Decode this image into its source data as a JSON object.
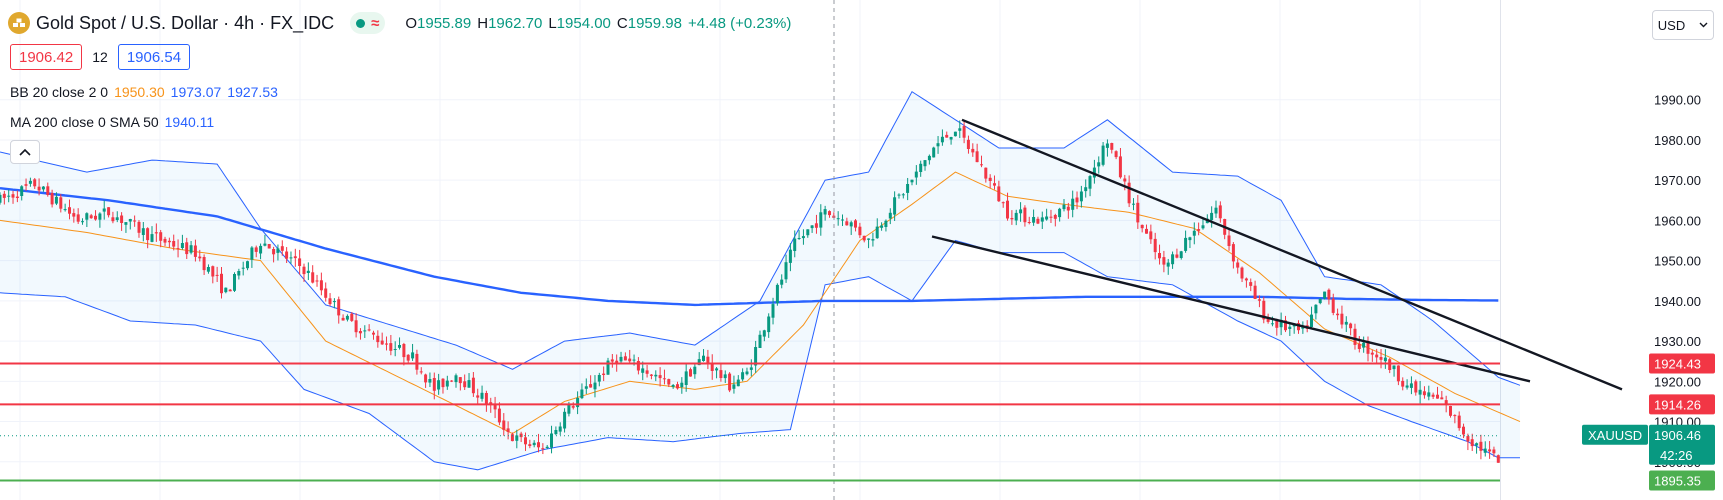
{
  "header": {
    "title": "Gold Spot / U.S. Dollar · 4h · FX_IDC",
    "ohlc": {
      "o_label": "O",
      "o": "1955.89",
      "h_label": "H",
      "h": "1962.70",
      "l_label": "L",
      "l": "1954.00",
      "c_label": "C",
      "c": "1959.98",
      "change": "+4.48 (+0.23%)"
    },
    "status_color": "#089981"
  },
  "trade": {
    "sell": "1906.42",
    "spread": "12",
    "buy": "1906.54"
  },
  "indicators": {
    "bb": {
      "label": "BB 20 close 2 0",
      "basis": "1950.30",
      "upper": "1973.07",
      "lower": "1927.53",
      "basis_color": "#f7931a",
      "band_color": "#2962ff"
    },
    "ma": {
      "label": "MA 200 close 0 SMA 50",
      "value": "1940.11",
      "color": "#2962ff"
    }
  },
  "currency": {
    "label": "USD"
  },
  "chart_data": {
    "type": "candlestick",
    "symbol": "XAUUSD",
    "interval": "4h",
    "y_axis": {
      "ticks": [
        1900,
        1910,
        1920,
        1930,
        1940,
        1950,
        1960,
        1970,
        1980,
        1990
      ],
      "labels": [
        "1900.00",
        "1910.00",
        "1920.00",
        "1930.00",
        "1940.00",
        "1950.00",
        "1960.00",
        "1970.00",
        "1980.00",
        "1990.00"
      ],
      "range": [
        1890.5,
        2001.8
      ]
    },
    "candle_count": 300,
    "close_path": [
      [
        0,
        1965
      ],
      [
        8,
        1969
      ],
      [
        18,
        1960
      ],
      [
        25,
        1962
      ],
      [
        35,
        1956
      ],
      [
        45,
        1952
      ],
      [
        52,
        1942
      ],
      [
        60,
        1955
      ],
      [
        70,
        1948
      ],
      [
        80,
        1935
      ],
      [
        88,
        1930
      ],
      [
        95,
        1926
      ],
      [
        100,
        1918
      ],
      [
        105,
        1922
      ],
      [
        112,
        1915
      ],
      [
        118,
        1906
      ],
      [
        125,
        1903
      ],
      [
        130,
        1912
      ],
      [
        135,
        1918
      ],
      [
        142,
        1926
      ],
      [
        150,
        1922
      ],
      [
        155,
        1918
      ],
      [
        162,
        1926
      ],
      [
        168,
        1919
      ],
      [
        172,
        1922
      ],
      [
        178,
        1940
      ],
      [
        183,
        1954
      ],
      [
        190,
        1962
      ],
      [
        195,
        1960
      ],
      [
        200,
        1955
      ],
      [
        205,
        1963
      ],
      [
        210,
        1970
      ],
      [
        215,
        1978
      ],
      [
        220,
        1983
      ],
      [
        225,
        1975
      ],
      [
        232,
        1962
      ],
      [
        240,
        1960
      ],
      [
        248,
        1965
      ],
      [
        255,
        1980
      ],
      [
        262,
        1960
      ],
      [
        268,
        1948
      ],
      [
        273,
        1955
      ],
      [
        280,
        1963
      ],
      [
        285,
        1948
      ],
      [
        292,
        1935
      ],
      [
        300,
        1932
      ],
      [
        305,
        1942
      ],
      [
        312,
        1930
      ],
      [
        318,
        1926
      ],
      [
        325,
        1918
      ],
      [
        332,
        1915
      ],
      [
        338,
        1906
      ],
      [
        345,
        1900
      ],
      [
        350,
        1904
      ]
    ],
    "bb_upper_path": [
      [
        0,
        1977
      ],
      [
        20,
        1972
      ],
      [
        35,
        1975
      ],
      [
        50,
        1974
      ],
      [
        60,
        1958
      ],
      [
        75,
        1939
      ],
      [
        90,
        1934
      ],
      [
        105,
        1929
      ],
      [
        118,
        1923
      ],
      [
        130,
        1930
      ],
      [
        145,
        1932
      ],
      [
        160,
        1929
      ],
      [
        175,
        1940
      ],
      [
        190,
        1970
      ],
      [
        200,
        1972
      ],
      [
        210,
        1992
      ],
      [
        220,
        1985
      ],
      [
        230,
        1978
      ],
      [
        245,
        1978
      ],
      [
        255,
        1985
      ],
      [
        270,
        1972
      ],
      [
        285,
        1971
      ],
      [
        295,
        1965
      ],
      [
        305,
        1946
      ],
      [
        318,
        1944
      ],
      [
        330,
        1935
      ],
      [
        345,
        1921
      ],
      [
        350,
        1919
      ]
    ],
    "bb_lower_path": [
      [
        0,
        1942
      ],
      [
        15,
        1941
      ],
      [
        30,
        1935
      ],
      [
        45,
        1934
      ],
      [
        60,
        1930
      ],
      [
        70,
        1918
      ],
      [
        85,
        1912
      ],
      [
        100,
        1900
      ],
      [
        110,
        1898
      ],
      [
        125,
        1903
      ],
      [
        140,
        1906
      ],
      [
        155,
        1905
      ],
      [
        170,
        1907
      ],
      [
        182,
        1908
      ],
      [
        190,
        1944
      ],
      [
        200,
        1946
      ],
      [
        210,
        1940
      ],
      [
        220,
        1955
      ],
      [
        230,
        1952
      ],
      [
        245,
        1952
      ],
      [
        255,
        1946
      ],
      [
        270,
        1944
      ],
      [
        285,
        1935
      ],
      [
        295,
        1930
      ],
      [
        305,
        1920
      ],
      [
        315,
        1914
      ],
      [
        325,
        1910
      ],
      [
        338,
        1905
      ],
      [
        345,
        1901
      ],
      [
        350,
        1901
      ]
    ],
    "bb_basis_path": [
      [
        0,
        1960
      ],
      [
        20,
        1957
      ],
      [
        40,
        1953
      ],
      [
        60,
        1950
      ],
      [
        75,
        1930
      ],
      [
        90,
        1922
      ],
      [
        105,
        1914
      ],
      [
        118,
        1907
      ],
      [
        130,
        1915
      ],
      [
        145,
        1920
      ],
      [
        160,
        1918
      ],
      [
        172,
        1920
      ],
      [
        185,
        1934
      ],
      [
        198,
        1955
      ],
      [
        210,
        1964
      ],
      [
        220,
        1972
      ],
      [
        232,
        1966
      ],
      [
        245,
        1964
      ],
      [
        260,
        1962
      ],
      [
        275,
        1958
      ],
      [
        290,
        1947
      ],
      [
        305,
        1933
      ],
      [
        320,
        1926
      ],
      [
        335,
        1917
      ],
      [
        350,
        1910
      ]
    ],
    "ma_path": [
      [
        0,
        1968
      ],
      [
        25,
        1965
      ],
      [
        50,
        1961
      ],
      [
        75,
        1953
      ],
      [
        100,
        1946
      ],
      [
        120,
        1942
      ],
      [
        140,
        1940
      ],
      [
        160,
        1939
      ],
      [
        175,
        1939.5
      ],
      [
        190,
        1940
      ],
      [
        210,
        1940
      ],
      [
        230,
        1940.5
      ],
      [
        250,
        1941
      ],
      [
        270,
        1941
      ],
      [
        290,
        1941
      ],
      [
        310,
        1940.5
      ],
      [
        330,
        1940.2
      ],
      [
        345,
        1940.1
      ]
    ],
    "trendlines": [
      {
        "from": [
          1984,
          1956
        ],
        "to": [
          2035,
          1920
        ]
      },
      {
        "from": [
          1982,
          1985
        ],
        "to": [
          2053,
          1918
        ]
      }
    ],
    "horizontal_levels": [
      {
        "value": 1924.43,
        "label": "1924.43",
        "color": "#f23645"
      },
      {
        "value": 1914.26,
        "label": "1914.26",
        "color": "#f23645"
      },
      {
        "value": 1895.35,
        "label": "1895.35",
        "color": "#4caf50"
      }
    ],
    "last_price": {
      "value": 1906.46,
      "label": "1906.46",
      "countdown": "42:26",
      "symbol_label": "XAUUSD",
      "color": "#089981"
    },
    "up_color": "#089981",
    "down_color": "#f23645"
  }
}
